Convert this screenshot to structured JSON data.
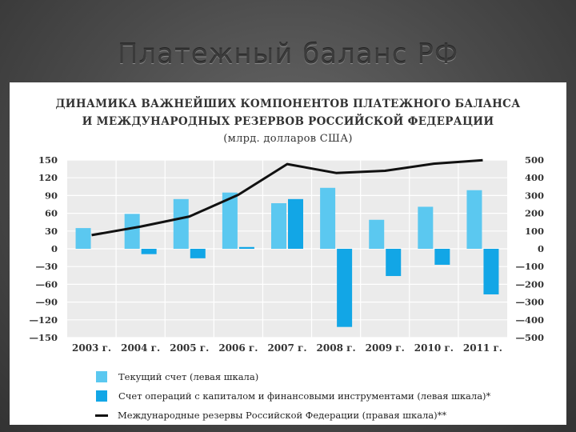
{
  "slide": {
    "title": "Платежный баланс РФ"
  },
  "chart_data": {
    "type": "bar",
    "title_lines": [
      "ДИНАМИКА ВАЖНЕЙШИХ КОМПОНЕНТОВ ПЛАТЕЖНОГО БАЛАНСА",
      "И МЕЖДУНАРОДНЫХ РЕЗЕРВОВ РОССИЙСКОЙ ФЕДЕРАЦИИ"
    ],
    "subtitle": "(млрд. долларов США)",
    "categories": [
      "2003 г.",
      "2004 г.",
      "2005 г.",
      "2006 г.",
      "2007 г.",
      "2008 г.",
      "2009 г.",
      "2010 г.",
      "2011 г."
    ],
    "series": [
      {
        "name": "Текущий счет (левая шкала)",
        "type": "bar",
        "axis": "left",
        "color": "#5bc8f0",
        "values": [
          35,
          59,
          84,
          95,
          77,
          103,
          49,
          71,
          99
        ]
      },
      {
        "name": "Счет операций с капиталом и финансовыми инструментами (левая шкала)*",
        "type": "bar",
        "axis": "left",
        "color": "#12a6e6",
        "values": [
          0,
          -9,
          -16,
          3,
          84,
          -132,
          -46,
          -27,
          -77
        ]
      },
      {
        "name": "Международные резервы Российской Федерации (правая шкала)**",
        "type": "line",
        "axis": "right",
        "color": "#111111",
        "values": [
          77,
          125,
          182,
          304,
          477,
          427,
          439,
          479,
          499
        ]
      }
    ],
    "left_axis": {
      "ylim": [
        -150,
        150
      ],
      "ticks": [
        150,
        120,
        90,
        60,
        30,
        0,
        -30,
        -60,
        -90,
        -120,
        -150
      ],
      "tick_labels": [
        "150",
        "120",
        "90",
        "60",
        "30",
        "0",
        "—30",
        "—60",
        "—90",
        "—120",
        "—150"
      ]
    },
    "right_axis": {
      "ylim": [
        -500,
        500
      ],
      "ticks": [
        500,
        400,
        300,
        200,
        100,
        0,
        -100,
        -200,
        -300,
        -400,
        -500
      ],
      "tick_labels": [
        "500",
        "400",
        "300",
        "200",
        "100",
        "0",
        "—100",
        "—200",
        "—300",
        "—400",
        "—500"
      ]
    },
    "grid": true,
    "legend_position": "bottom",
    "colors": {
      "plot_bg": "#ebebeb",
      "grid": "#ffffff"
    }
  }
}
